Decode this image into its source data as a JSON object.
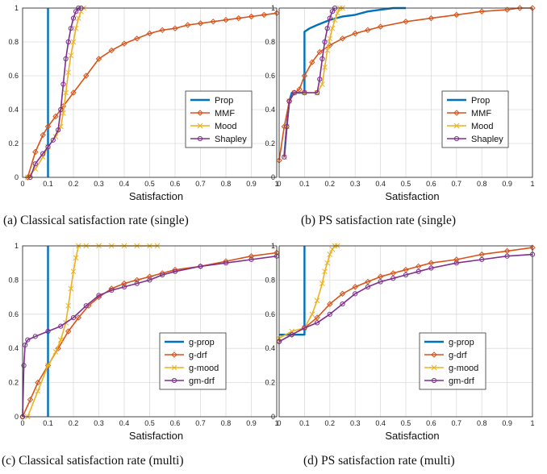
{
  "colors": {
    "prop": "#0072BD",
    "mmf": "#D95319",
    "mood": "#EDB120",
    "shapley": "#7E2F8E"
  },
  "chart_data": [
    {
      "type": "line",
      "id": "a",
      "caption": "(a) Classical satisfaction rate (single)",
      "xlabel": "Satisfaction",
      "xlim": [
        0,
        1
      ],
      "ylim": [
        0,
        1
      ],
      "xticks": [
        "0",
        "0.1",
        "0.2",
        "0.3",
        "0.4",
        "0.5",
        "0.6",
        "0.7",
        "0.8",
        "0.9",
        "1"
      ],
      "yticks": [
        "0",
        "0.2",
        "0.4",
        "0.6",
        "0.8",
        "1"
      ],
      "grid": true,
      "legend_position": "right",
      "series": [
        {
          "name": "Prop",
          "color_key": "prop",
          "marker": "none",
          "x": [
            0.1,
            0.1
          ],
          "y": [
            0,
            1
          ]
        },
        {
          "name": "MMF",
          "color_key": "mmf",
          "marker": "diamond",
          "x": [
            0.02,
            0.05,
            0.08,
            0.1,
            0.13,
            0.16,
            0.2,
            0.25,
            0.3,
            0.35,
            0.4,
            0.45,
            0.5,
            0.55,
            0.6,
            0.65,
            0.7,
            0.75,
            0.8,
            0.85,
            0.9,
            0.95,
            1.0
          ],
          "y": [
            0.0,
            0.15,
            0.25,
            0.3,
            0.36,
            0.42,
            0.5,
            0.6,
            0.7,
            0.75,
            0.79,
            0.82,
            0.85,
            0.87,
            0.88,
            0.9,
            0.91,
            0.92,
            0.93,
            0.94,
            0.95,
            0.96,
            0.97
          ]
        },
        {
          "name": "Mood",
          "color_key": "mood",
          "marker": "x",
          "x": [
            0.02,
            0.05,
            0.08,
            0.1,
            0.13,
            0.15,
            0.16,
            0.17,
            0.18,
            0.19,
            0.2,
            0.21,
            0.22,
            0.23,
            0.24
          ],
          "y": [
            0.0,
            0.05,
            0.12,
            0.18,
            0.24,
            0.3,
            0.38,
            0.5,
            0.62,
            0.72,
            0.8,
            0.88,
            0.94,
            0.98,
            1.0
          ]
        },
        {
          "name": "Shapley",
          "color_key": "shapley",
          "marker": "circle",
          "x": [
            0.03,
            0.05,
            0.08,
            0.1,
            0.12,
            0.14,
            0.15,
            0.16,
            0.17,
            0.18,
            0.19,
            0.2,
            0.21,
            0.22,
            0.23
          ],
          "y": [
            0.0,
            0.08,
            0.14,
            0.18,
            0.22,
            0.28,
            0.4,
            0.55,
            0.7,
            0.8,
            0.88,
            0.94,
            0.98,
            1.0,
            1.0
          ]
        }
      ]
    },
    {
      "type": "line",
      "id": "b",
      "caption": "(b) PS satisfaction rate (single)",
      "xlabel": "Satisfaction",
      "xlim": [
        0,
        1
      ],
      "ylim": [
        0,
        1
      ],
      "xticks": [
        "0",
        "0.1",
        "0.2",
        "0.3",
        "0.4",
        "0.5",
        "0.6",
        "0.7",
        "0.8",
        "0.9",
        "1"
      ],
      "yticks": [
        "0",
        "0.2",
        "0.4",
        "0.6",
        "0.8",
        "1"
      ],
      "grid": true,
      "legend_position": "right",
      "series": [
        {
          "name": "Prop",
          "color_key": "prop",
          "marker": "none",
          "x": [
            0.02,
            0.03,
            0.04,
            0.05,
            0.06,
            0.08,
            0.1,
            0.1,
            0.12,
            0.15,
            0.2,
            0.25,
            0.3,
            0.35,
            0.4,
            0.45,
            0.5
          ],
          "y": [
            0.12,
            0.3,
            0.45,
            0.5,
            0.5,
            0.5,
            0.5,
            0.86,
            0.88,
            0.9,
            0.93,
            0.95,
            0.96,
            0.98,
            0.99,
            1.0,
            1.0
          ]
        },
        {
          "name": "MMF",
          "color_key": "mmf",
          "marker": "diamond",
          "x": [
            0.0,
            0.02,
            0.04,
            0.06,
            0.08,
            0.1,
            0.13,
            0.16,
            0.2,
            0.25,
            0.3,
            0.35,
            0.4,
            0.5,
            0.6,
            0.7,
            0.8,
            0.9,
            0.95,
            1.0
          ],
          "y": [
            0.1,
            0.3,
            0.45,
            0.5,
            0.52,
            0.6,
            0.68,
            0.74,
            0.78,
            0.82,
            0.85,
            0.87,
            0.89,
            0.92,
            0.94,
            0.96,
            0.98,
            0.99,
            1.0,
            1.0
          ]
        },
        {
          "name": "Mood",
          "color_key": "mood",
          "marker": "x",
          "x": [
            0.02,
            0.03,
            0.04,
            0.06,
            0.1,
            0.15,
            0.17,
            0.18,
            0.19,
            0.2,
            0.21,
            0.22,
            0.23,
            0.24,
            0.25
          ],
          "y": [
            0.12,
            0.3,
            0.45,
            0.5,
            0.5,
            0.5,
            0.55,
            0.65,
            0.75,
            0.82,
            0.88,
            0.93,
            0.97,
            1.0,
            1.0
          ]
        },
        {
          "name": "Shapley",
          "color_key": "shapley",
          "marker": "circle",
          "x": [
            0.02,
            0.03,
            0.04,
            0.06,
            0.1,
            0.15,
            0.16,
            0.17,
            0.18,
            0.19,
            0.2,
            0.21,
            0.22
          ],
          "y": [
            0.12,
            0.3,
            0.45,
            0.5,
            0.5,
            0.5,
            0.58,
            0.7,
            0.8,
            0.88,
            0.94,
            0.98,
            1.0
          ]
        }
      ]
    },
    {
      "type": "line",
      "id": "c",
      "caption": "(c) Classical satisfaction rate (multi)",
      "xlabel": "Satisfaction",
      "xlim": [
        0,
        1
      ],
      "ylim": [
        0,
        1
      ],
      "xticks": [
        "0",
        "0.1",
        "0.2",
        "0.3",
        "0.4",
        "0.5",
        "0.6",
        "0.7",
        "0.8",
        "0.9",
        "1"
      ],
      "yticks": [
        "0",
        "0.2",
        "0.4",
        "0.6",
        "0.8",
        "1"
      ],
      "grid": true,
      "legend_position": "right",
      "series": [
        {
          "name": "g-prop",
          "color_key": "prop",
          "marker": "none",
          "x": [
            0.1,
            0.1
          ],
          "y": [
            0,
            1
          ]
        },
        {
          "name": "g-drf",
          "color_key": "mmf",
          "marker": "diamond",
          "x": [
            0.0,
            0.03,
            0.06,
            0.1,
            0.14,
            0.18,
            0.22,
            0.26,
            0.3,
            0.35,
            0.4,
            0.45,
            0.5,
            0.55,
            0.6,
            0.7,
            0.8,
            0.9,
            1.0
          ],
          "y": [
            0.0,
            0.1,
            0.2,
            0.3,
            0.4,
            0.5,
            0.58,
            0.65,
            0.7,
            0.75,
            0.78,
            0.8,
            0.82,
            0.84,
            0.86,
            0.88,
            0.91,
            0.94,
            0.96
          ]
        },
        {
          "name": "g-mood",
          "color_key": "mood",
          "marker": "x",
          "x": [
            0.02,
            0.06,
            0.1,
            0.13,
            0.15,
            0.17,
            0.18,
            0.19,
            0.2,
            0.21,
            0.22,
            0.25,
            0.3,
            0.35,
            0.4,
            0.45,
            0.5,
            0.53
          ],
          "y": [
            0.0,
            0.15,
            0.3,
            0.38,
            0.45,
            0.55,
            0.65,
            0.75,
            0.85,
            0.93,
            1.0,
            1.0,
            1.0,
            1.0,
            1.0,
            1.0,
            1.0,
            1.0
          ]
        },
        {
          "name": "gm-drf",
          "color_key": "shapley",
          "marker": "circle",
          "x": [
            0.0,
            0.005,
            0.01,
            0.02,
            0.05,
            0.1,
            0.15,
            0.2,
            0.25,
            0.3,
            0.35,
            0.4,
            0.45,
            0.5,
            0.55,
            0.6,
            0.7,
            0.8,
            0.9,
            1.0
          ],
          "y": [
            0.0,
            0.3,
            0.42,
            0.45,
            0.47,
            0.5,
            0.53,
            0.58,
            0.65,
            0.71,
            0.74,
            0.76,
            0.78,
            0.8,
            0.83,
            0.85,
            0.88,
            0.9,
            0.92,
            0.94
          ]
        }
      ]
    },
    {
      "type": "line",
      "id": "d",
      "caption": "(d) PS satisfaction rate (multi)",
      "xlabel": "Satisfaction",
      "xlim": [
        0,
        1
      ],
      "ylim": [
        0,
        1
      ],
      "xticks": [
        "0",
        "0.1",
        "0.2",
        "0.3",
        "0.4",
        "0.5",
        "0.6",
        "0.7",
        "0.8",
        "0.9",
        "1"
      ],
      "yticks": [
        "0",
        "0.2",
        "0.4",
        "0.6",
        "0.8",
        "1"
      ],
      "grid": true,
      "legend_position": "right",
      "series": [
        {
          "name": "g-prop",
          "color_key": "prop",
          "marker": "none",
          "x": [
            0.0,
            0.05,
            0.1,
            0.1,
            0.1
          ],
          "y": [
            0.48,
            0.48,
            0.48,
            0.9,
            1.0
          ]
        },
        {
          "name": "g-drf",
          "color_key": "mmf",
          "marker": "diamond",
          "x": [
            0.0,
            0.05,
            0.1,
            0.15,
            0.2,
            0.25,
            0.3,
            0.35,
            0.4,
            0.45,
            0.5,
            0.55,
            0.6,
            0.7,
            0.8,
            0.9,
            1.0
          ],
          "y": [
            0.44,
            0.48,
            0.52,
            0.58,
            0.66,
            0.72,
            0.76,
            0.79,
            0.82,
            0.84,
            0.86,
            0.88,
            0.9,
            0.92,
            0.95,
            0.97,
            0.99
          ]
        },
        {
          "name": "g-mood",
          "color_key": "mood",
          "marker": "x",
          "x": [
            0.0,
            0.05,
            0.1,
            0.13,
            0.15,
            0.17,
            0.18,
            0.19,
            0.2,
            0.21,
            0.22,
            0.23
          ],
          "y": [
            0.46,
            0.5,
            0.52,
            0.6,
            0.68,
            0.78,
            0.85,
            0.9,
            0.95,
            0.98,
            1.0,
            1.0
          ]
        },
        {
          "name": "gm-drf",
          "color_key": "shapley",
          "marker": "circle",
          "x": [
            0.0,
            0.05,
            0.1,
            0.15,
            0.2,
            0.25,
            0.3,
            0.35,
            0.4,
            0.45,
            0.5,
            0.55,
            0.6,
            0.7,
            0.8,
            0.9,
            1.0
          ],
          "y": [
            0.44,
            0.48,
            0.52,
            0.55,
            0.6,
            0.66,
            0.72,
            0.76,
            0.79,
            0.81,
            0.83,
            0.85,
            0.87,
            0.9,
            0.92,
            0.94,
            0.95
          ]
        }
      ]
    }
  ]
}
